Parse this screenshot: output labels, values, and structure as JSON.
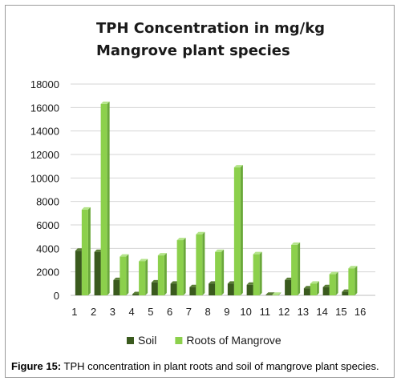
{
  "chart_data": {
    "type": "bar",
    "title_lines": [
      "TPH Concentration in mg/kg",
      "Mangrove plant species"
    ],
    "categories": [
      "1",
      "2",
      "3",
      "4",
      "5",
      "6",
      "7",
      "8",
      "9",
      "10",
      "11",
      "12",
      "13",
      "14",
      "15",
      "16"
    ],
    "series": [
      {
        "name": "Soil",
        "color": "#3a5a1e",
        "values": [
          3800,
          3700,
          1300,
          100,
          1100,
          1000,
          700,
          1000,
          1000,
          900,
          50,
          1300,
          600,
          700,
          300,
          0
        ]
      },
      {
        "name": "Roots of Mangrove",
        "color": "#8cd04c",
        "values": [
          7300,
          16300,
          3300,
          2900,
          3400,
          4700,
          5200,
          3700,
          10900,
          3500,
          50,
          4300,
          1000,
          1800,
          2300,
          0
        ]
      }
    ],
    "ylim": [
      0,
      18000
    ],
    "yticks": [
      0,
      2000,
      4000,
      6000,
      8000,
      10000,
      12000,
      14000,
      16000,
      18000
    ],
    "grid": true,
    "legend_position": "bottom"
  },
  "caption": {
    "label": "Figure 15:",
    "text": " TPH concentration in plant roots and soil of mangrove plant species."
  }
}
